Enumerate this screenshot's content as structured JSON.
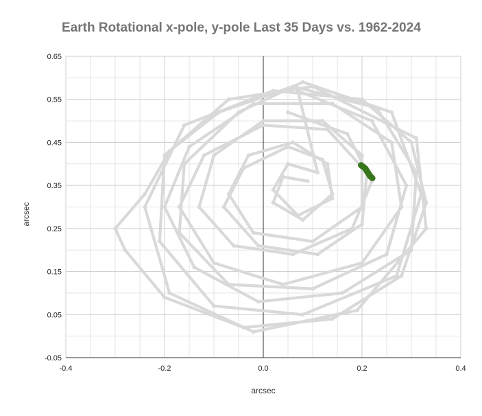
{
  "chart_data": {
    "type": "scatter",
    "title": "Earth Rotational x-pole, y-pole Last 35 Days vs. 1962-2024",
    "xlabel": "arcsec",
    "ylabel": "arcsec",
    "xlim": [
      -0.4,
      0.4
    ],
    "ylim": [
      -0.05,
      0.65
    ],
    "x_ticks": [
      "-0.4",
      "-0.2",
      "0.0",
      "0.2",
      "0.4"
    ],
    "y_ticks": [
      "-0.05",
      "0.05",
      "0.15",
      "0.25",
      "0.35",
      "0.45",
      "0.55",
      "0.65"
    ],
    "grid": true,
    "legend": "none",
    "series": [
      {
        "color": "#d9d9d9",
        "points": [
          [
            0.05,
            0.52
          ],
          [
            0.17,
            0.47
          ],
          [
            0.22,
            0.36
          ],
          [
            0.18,
            0.25
          ],
          [
            0.06,
            0.19
          ],
          [
            -0.06,
            0.21
          ],
          [
            -0.13,
            0.3
          ],
          [
            -0.1,
            0.42
          ],
          [
            0.0,
            0.5
          ],
          [
            0.12,
            0.5
          ],
          [
            0.2,
            0.42
          ],
          [
            0.2,
            0.3
          ],
          [
            0.1,
            0.22
          ],
          [
            -0.02,
            0.24
          ],
          [
            -0.07,
            0.33
          ],
          [
            -0.03,
            0.42
          ],
          [
            0.06,
            0.45
          ],
          [
            0.13,
            0.4
          ],
          [
            0.14,
            0.32
          ],
          [
            0.07,
            0.28
          ],
          [
            0.02,
            0.34
          ],
          [
            0.05,
            0.4
          ],
          [
            0.11,
            0.38
          ],
          [
            0.07,
            0.57
          ],
          [
            0.22,
            0.5
          ],
          [
            0.29,
            0.35
          ],
          [
            0.25,
            0.19
          ],
          [
            0.1,
            0.11
          ],
          [
            -0.07,
            0.12
          ],
          [
            -0.17,
            0.24
          ],
          [
            -0.16,
            0.4
          ],
          [
            -0.05,
            0.52
          ],
          [
            0.08,
            0.59
          ],
          [
            0.26,
            0.52
          ],
          [
            0.32,
            0.33
          ],
          [
            0.27,
            0.14
          ],
          [
            0.08,
            0.05
          ],
          [
            -0.1,
            0.07
          ],
          [
            -0.21,
            0.22
          ],
          [
            -0.2,
            0.42
          ],
          [
            -0.07,
            0.55
          ],
          [
            0.1,
            0.58
          ],
          [
            0.31,
            0.46
          ],
          [
            0.33,
            0.25
          ],
          [
            0.19,
            0.06
          ],
          [
            -0.02,
            0.01
          ],
          [
            -0.19,
            0.1
          ],
          [
            -0.24,
            0.3
          ],
          [
            -0.16,
            0.49
          ],
          [
            0.02,
            0.57
          ],
          [
            0.2,
            0.55
          ],
          [
            0.3,
            0.45
          ],
          [
            0.33,
            0.31
          ],
          [
            0.28,
            0.14
          ],
          [
            0.14,
            0.04
          ],
          [
            -0.04,
            0.02
          ],
          [
            -0.2,
            0.09
          ],
          [
            -0.28,
            0.2
          ],
          [
            -0.3,
            0.25
          ],
          [
            -0.24,
            0.33
          ],
          [
            -0.19,
            0.43
          ],
          [
            -0.09,
            0.52
          ],
          [
            0.06,
            0.58
          ],
          [
            0.23,
            0.53
          ],
          [
            0.31,
            0.38
          ],
          [
            0.3,
            0.2
          ],
          [
            0.16,
            0.1
          ],
          [
            -0.01,
            0.08
          ],
          [
            -0.14,
            0.16
          ],
          [
            -0.2,
            0.3
          ],
          [
            -0.15,
            0.44
          ],
          [
            -0.02,
            0.54
          ],
          [
            0.14,
            0.54
          ],
          [
            0.26,
            0.45
          ],
          [
            0.28,
            0.3
          ],
          [
            0.2,
            0.17
          ],
          [
            0.04,
            0.12
          ],
          [
            -0.1,
            0.17
          ],
          [
            -0.17,
            0.3
          ],
          [
            -0.12,
            0.42
          ],
          [
            0.0,
            0.49
          ],
          [
            0.13,
            0.48
          ],
          [
            0.21,
            0.38
          ],
          [
            0.2,
            0.26
          ],
          [
            0.11,
            0.19
          ],
          [
            -0.01,
            0.21
          ],
          [
            -0.08,
            0.3
          ],
          [
            -0.04,
            0.39
          ],
          [
            0.05,
            0.44
          ],
          [
            0.12,
            0.41
          ],
          [
            0.14,
            0.33
          ],
          [
            0.08,
            0.27
          ],
          [
            0.02,
            0.31
          ],
          [
            0.04,
            0.37
          ],
          [
            0.09,
            0.36
          ]
        ]
      },
      {
        "color": "#38761d",
        "points": [
          [
            0.198,
            0.397
          ],
          [
            0.2,
            0.395
          ],
          [
            0.203,
            0.393
          ],
          [
            0.205,
            0.391
          ],
          [
            0.207,
            0.389
          ],
          [
            0.208,
            0.387
          ],
          [
            0.209,
            0.385
          ],
          [
            0.21,
            0.383
          ],
          [
            0.211,
            0.381
          ],
          [
            0.212,
            0.38
          ],
          [
            0.213,
            0.378
          ],
          [
            0.214,
            0.376
          ],
          [
            0.215,
            0.374
          ],
          [
            0.216,
            0.372
          ],
          [
            0.217,
            0.371
          ],
          [
            0.218,
            0.37
          ],
          [
            0.219,
            0.369
          ],
          [
            0.22,
            0.368
          ],
          [
            0.221,
            0.367
          ]
        ]
      }
    ]
  }
}
